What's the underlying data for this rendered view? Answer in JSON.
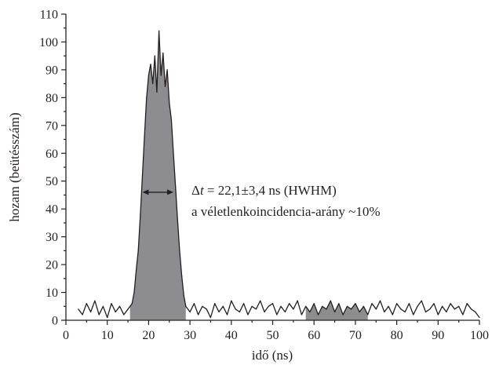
{
  "chart_data": {
    "type": "line",
    "title": "",
    "xlabel": "idő (ns)",
    "ylabel": "hozam (beütésszám)",
    "xlim": [
      0,
      100
    ],
    "ylim": [
      0,
      110
    ],
    "x_ticks": [
      "0",
      "10",
      "20",
      "30",
      "40",
      "50",
      "60",
      "70",
      "80",
      "90",
      "100"
    ],
    "y_ticks": [
      "0",
      "10",
      "20",
      "30",
      "40",
      "50",
      "60",
      "70",
      "80",
      "90",
      "100",
      "110"
    ],
    "grid": false,
    "legend": "none",
    "colors": {
      "line": "#231f20",
      "fill": "#8d8d8f",
      "text": "#231f20"
    },
    "series": [
      {
        "x": [
          3,
          4,
          5,
          6,
          7,
          8,
          9,
          10,
          11,
          12,
          13,
          14,
          15,
          16,
          16.5,
          17,
          17.5,
          18,
          18.5,
          19,
          19.5,
          20,
          20.5,
          21,
          21.5,
          22,
          22.5,
          23,
          23.5,
          24,
          24.5,
          25,
          25.5,
          26,
          26.5,
          27,
          27.5,
          28,
          28.5,
          29,
          30,
          31,
          32,
          33,
          34,
          35,
          36,
          37,
          38,
          39,
          40,
          41,
          42,
          43,
          44,
          45,
          46,
          47,
          48,
          49,
          50,
          51,
          52,
          53,
          54,
          55,
          56,
          57,
          58,
          59,
          60,
          61,
          62,
          63,
          64,
          65,
          66,
          67,
          68,
          69,
          70,
          71,
          72,
          73,
          74,
          75,
          76,
          77,
          78,
          79,
          80,
          81,
          82,
          83,
          84,
          85,
          86,
          87,
          88,
          89,
          90,
          91,
          92,
          93,
          94,
          95,
          96,
          97,
          98,
          99,
          100
        ],
        "y": [
          4,
          2,
          6,
          3,
          7,
          2,
          5,
          1,
          6,
          3,
          5,
          2,
          4,
          6,
          10,
          18,
          25,
          38,
          52,
          66,
          80,
          88,
          92,
          85,
          95,
          82,
          104,
          88,
          96,
          84,
          90,
          78,
          72,
          60,
          48,
          36,
          25,
          16,
          9,
          5,
          3,
          6,
          2,
          5,
          4,
          1,
          6,
          3,
          5,
          2,
          7,
          4,
          3,
          6,
          2,
          5,
          4,
          7,
          3,
          5,
          6,
          2,
          5,
          3,
          6,
          4,
          7,
          2,
          5,
          3,
          6,
          2,
          5,
          4,
          7,
          3,
          6,
          2,
          5,
          4,
          6,
          3,
          5,
          2,
          6,
          4,
          7,
          3,
          5,
          2,
          6,
          4,
          3,
          6,
          2,
          5,
          7,
          3,
          4,
          6,
          2,
          5,
          3,
          6,
          4,
          5,
          2,
          6,
          4,
          3,
          1
        ]
      }
    ],
    "shaded_regions": [
      {
        "x_start": 15.5,
        "x_end": 29,
        "label": "peak"
      },
      {
        "x_start": 58,
        "x_end": 73,
        "label": "background"
      }
    ],
    "annotations": {
      "hwhm_arrow": {
        "x_start": 18.5,
        "x_end": 26,
        "y": 46
      },
      "line1_prefix": "Δ",
      "line1_italic": "t",
      "line1_rest": " = 22,1±3,4 ns (HWHM)",
      "line2": "a véletlenkoincidencia-arány ~10%"
    }
  }
}
